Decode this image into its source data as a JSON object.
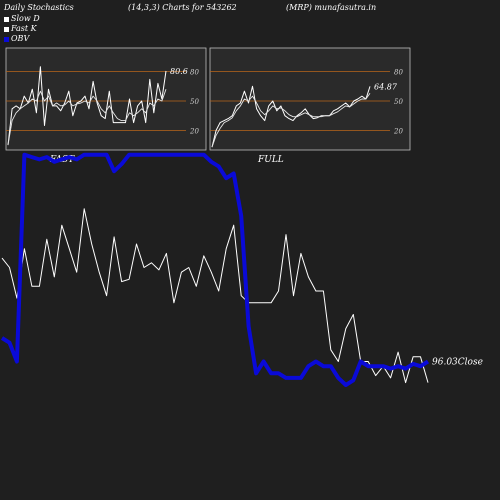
{
  "header": {
    "left": "Daily Stochastics",
    "params": "(14,3,3) Charts for 543262",
    "site": "(MRP) munafasutra.in"
  },
  "legend": [
    {
      "label": "Slow  D",
      "color": "#ffffff"
    },
    {
      "label": "Fast K",
      "color": "#ffffff"
    },
    {
      "label": "OBV",
      "color": "#0a0ad8"
    }
  ],
  "colors": {
    "background": "#1f1f1f",
    "panel": "#2a2a2a",
    "panel_border": "#bfbfbf",
    "level_line": "#b8651b",
    "price_line": "#ffffff",
    "obv_line": "#0a0ad8"
  },
  "chart_data": [
    {
      "type": "line",
      "panel": "FAST",
      "title": "FAST",
      "ylim": [
        0,
        100
      ],
      "y_ticks": [
        20,
        50,
        80
      ],
      "last_value_label": "80.6",
      "series": [
        {
          "name": "Fast K",
          "values": [
            5,
            42,
            45,
            42,
            55,
            48,
            62,
            38,
            85,
            25,
            62,
            45,
            45,
            40,
            48,
            60,
            35,
            48,
            50,
            55,
            42,
            70,
            48,
            35,
            32,
            60,
            28,
            28,
            28,
            28,
            52,
            28,
            45,
            50,
            28,
            72,
            38,
            68,
            52,
            80.6
          ]
        },
        {
          "name": "Slow  D",
          "values": [
            5,
            30,
            38,
            42,
            45,
            48,
            52,
            50,
            60,
            50,
            55,
            45,
            48,
            45,
            46,
            50,
            45,
            47,
            48,
            50,
            48,
            55,
            50,
            42,
            38,
            45,
            38,
            32,
            30,
            30,
            38,
            35,
            38,
            42,
            38,
            48,
            45,
            52,
            50,
            62
          ]
        }
      ]
    },
    {
      "type": "line",
      "panel": "FULL",
      "title": "FULL",
      "ylim": [
        0,
        100
      ],
      "y_ticks": [
        20,
        50,
        80
      ],
      "last_value_label": "64.87",
      "series": [
        {
          "name": "Fast K",
          "values": [
            3,
            20,
            28,
            30,
            32,
            35,
            45,
            48,
            60,
            48,
            65,
            42,
            35,
            30,
            45,
            50,
            40,
            45,
            35,
            32,
            30,
            35,
            38,
            42,
            36,
            32,
            33,
            35,
            35,
            35,
            40,
            42,
            45,
            48,
            44,
            50,
            52,
            55,
            52,
            64.87
          ]
        },
        {
          "name": "Slow  D",
          "values": [
            3,
            15,
            22,
            28,
            30,
            33,
            40,
            45,
            52,
            50,
            55,
            48,
            40,
            36,
            40,
            45,
            42,
            43,
            40,
            36,
            34,
            34,
            36,
            38,
            36,
            34,
            34,
            34,
            35,
            35,
            37,
            39,
            42,
            45,
            44,
            47,
            50,
            52,
            52,
            58
          ]
        }
      ]
    },
    {
      "type": "line",
      "panel": "OBV",
      "last_value_label": "96.03",
      "last_value_suffix": "Close",
      "series": [
        {
          "name": "Close",
          "values": [
            54,
            50,
            37,
            58,
            42,
            42,
            62,
            46,
            68,
            58,
            48,
            75,
            60,
            48,
            38,
            63,
            44,
            45,
            60,
            50,
            52,
            49,
            56,
            35,
            48,
            50,
            42,
            55,
            48,
            40,
            58,
            68,
            38,
            35,
            35,
            35,
            35,
            40,
            64,
            38,
            56,
            46,
            40,
            40,
            15,
            10,
            24,
            30,
            10,
            10,
            4,
            8,
            3,
            14,
            1,
            12,
            12,
            1
          ]
        },
        {
          "name": "OBV",
          "values": [
            20,
            18,
            10,
            98,
            97,
            96,
            97,
            95,
            96,
            97,
            96,
            98,
            98,
            98,
            98,
            91,
            94,
            98,
            98,
            98,
            98,
            98,
            98,
            98,
            98,
            98,
            98,
            98,
            95,
            93,
            88,
            90,
            72,
            25,
            5,
            10,
            5,
            5,
            3,
            3,
            3,
            8,
            10,
            8,
            8,
            3,
            0,
            2,
            10,
            8,
            8,
            8,
            7,
            8,
            7,
            9,
            8,
            10
          ]
        }
      ]
    }
  ]
}
